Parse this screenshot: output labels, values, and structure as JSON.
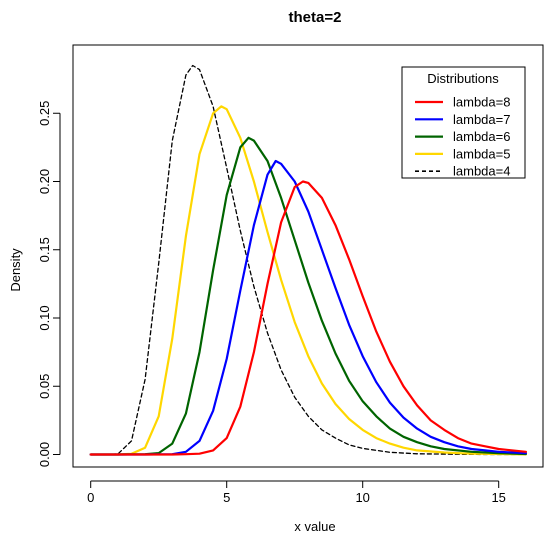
{
  "chart_data": {
    "type": "line",
    "title": "theta=2",
    "xlabel": "x value",
    "ylabel": "Density",
    "xlim": [
      0,
      16
    ],
    "ylim": [
      0,
      0.285
    ],
    "xticks": [
      0,
      5,
      10,
      15
    ],
    "yticks": [
      0.0,
      0.05,
      0.1,
      0.15,
      0.2,
      0.25
    ],
    "ytick_labels": [
      "0.00",
      "0.05",
      "0.10",
      "0.15",
      "0.20",
      "0.25"
    ],
    "grid": false,
    "legend": {
      "title": "Distributions",
      "placement": "top-right",
      "entries": [
        "lambda=8",
        "lambda=7",
        "lambda=6",
        "lambda=5",
        "lambda=4"
      ]
    },
    "series": [
      {
        "name": "lambda=8",
        "color": "#FF0000",
        "style": "solid",
        "points": [
          [
            0,
            0
          ],
          [
            1,
            0
          ],
          [
            2,
            0
          ],
          [
            3,
            0
          ],
          [
            3.5,
            0.0002
          ],
          [
            4,
            0.0006
          ],
          [
            4.5,
            0.003
          ],
          [
            5,
            0.012
          ],
          [
            5.5,
            0.035
          ],
          [
            6,
            0.075
          ],
          [
            6.5,
            0.125
          ],
          [
            7,
            0.17
          ],
          [
            7.5,
            0.196
          ],
          [
            7.8,
            0.2
          ],
          [
            8,
            0.199
          ],
          [
            8.5,
            0.188
          ],
          [
            9,
            0.168
          ],
          [
            9.5,
            0.143
          ],
          [
            10,
            0.116
          ],
          [
            10.5,
            0.09
          ],
          [
            11,
            0.068
          ],
          [
            11.5,
            0.05
          ],
          [
            12,
            0.036
          ],
          [
            12.5,
            0.025
          ],
          [
            13,
            0.018
          ],
          [
            13.5,
            0.012
          ],
          [
            14,
            0.008
          ],
          [
            14.5,
            0.006
          ],
          [
            15,
            0.004
          ],
          [
            16,
            0.002
          ]
        ]
      },
      {
        "name": "lambda=7",
        "color": "#0000FF",
        "style": "solid",
        "points": [
          [
            0,
            0
          ],
          [
            1,
            0
          ],
          [
            2,
            0
          ],
          [
            3,
            0.0002
          ],
          [
            3.5,
            0.002
          ],
          [
            4,
            0.01
          ],
          [
            4.5,
            0.032
          ],
          [
            5,
            0.07
          ],
          [
            5.5,
            0.12
          ],
          [
            6,
            0.168
          ],
          [
            6.5,
            0.205
          ],
          [
            6.8,
            0.215
          ],
          [
            7,
            0.213
          ],
          [
            7.5,
            0.2
          ],
          [
            8,
            0.178
          ],
          [
            8.5,
            0.15
          ],
          [
            9,
            0.122
          ],
          [
            9.5,
            0.095
          ],
          [
            10,
            0.072
          ],
          [
            10.5,
            0.053
          ],
          [
            11,
            0.038
          ],
          [
            11.5,
            0.027
          ],
          [
            12,
            0.019
          ],
          [
            12.5,
            0.013
          ],
          [
            13,
            0.009
          ],
          [
            13.5,
            0.006
          ],
          [
            14,
            0.004
          ],
          [
            14.5,
            0.003
          ],
          [
            15,
            0.002
          ],
          [
            16,
            0.001
          ]
        ]
      },
      {
        "name": "lambda=6",
        "color": "#006400",
        "style": "solid",
        "points": [
          [
            0,
            0
          ],
          [
            1,
            0
          ],
          [
            2,
            0.0002
          ],
          [
            2.5,
            0.001
          ],
          [
            3,
            0.008
          ],
          [
            3.5,
            0.03
          ],
          [
            4,
            0.075
          ],
          [
            4.5,
            0.135
          ],
          [
            5,
            0.19
          ],
          [
            5.5,
            0.225
          ],
          [
            5.8,
            0.232
          ],
          [
            6,
            0.23
          ],
          [
            6.5,
            0.215
          ],
          [
            7,
            0.188
          ],
          [
            7.5,
            0.157
          ],
          [
            8,
            0.126
          ],
          [
            8.5,
            0.098
          ],
          [
            9,
            0.074
          ],
          [
            9.5,
            0.054
          ],
          [
            10,
            0.039
          ],
          [
            10.5,
            0.028
          ],
          [
            11,
            0.019
          ],
          [
            11.5,
            0.013
          ],
          [
            12,
            0.009
          ],
          [
            12.5,
            0.006
          ],
          [
            13,
            0.004
          ],
          [
            14,
            0.002
          ],
          [
            15,
            0.001
          ],
          [
            16,
            0.0004
          ]
        ]
      },
      {
        "name": "lambda=5",
        "color": "#FFD700",
        "style": "solid",
        "points": [
          [
            0,
            0
          ],
          [
            1,
            0
          ],
          [
            1.5,
            0.0005
          ],
          [
            2,
            0.005
          ],
          [
            2.5,
            0.028
          ],
          [
            3,
            0.085
          ],
          [
            3.5,
            0.16
          ],
          [
            4,
            0.22
          ],
          [
            4.5,
            0.25
          ],
          [
            4.8,
            0.255
          ],
          [
            5,
            0.253
          ],
          [
            5.5,
            0.232
          ],
          [
            6,
            0.2
          ],
          [
            6.5,
            0.163
          ],
          [
            7,
            0.128
          ],
          [
            7.5,
            0.097
          ],
          [
            8,
            0.072
          ],
          [
            8.5,
            0.052
          ],
          [
            9,
            0.037
          ],
          [
            9.5,
            0.026
          ],
          [
            10,
            0.018
          ],
          [
            10.5,
            0.012
          ],
          [
            11,
            0.008
          ],
          [
            11.5,
            0.005
          ],
          [
            12,
            0.003
          ],
          [
            13,
            0.0015
          ],
          [
            14,
            0.0006
          ],
          [
            16,
            0.0001
          ]
        ]
      },
      {
        "name": "lambda=4",
        "color": "#000000",
        "style": "dashed",
        "points": [
          [
            0,
            0
          ],
          [
            0.5,
            0
          ],
          [
            1,
            0.0004
          ],
          [
            1.5,
            0.01
          ],
          [
            2,
            0.055
          ],
          [
            2.5,
            0.14
          ],
          [
            3,
            0.23
          ],
          [
            3.5,
            0.278
          ],
          [
            3.75,
            0.285
          ],
          [
            4,
            0.282
          ],
          [
            4.5,
            0.255
          ],
          [
            5,
            0.21
          ],
          [
            5.5,
            0.164
          ],
          [
            6,
            0.123
          ],
          [
            6.5,
            0.089
          ],
          [
            7,
            0.062
          ],
          [
            7.5,
            0.042
          ],
          [
            8,
            0.028
          ],
          [
            8.5,
            0.018
          ],
          [
            9,
            0.012
          ],
          [
            9.5,
            0.007
          ],
          [
            10,
            0.0045
          ],
          [
            11,
            0.0016
          ],
          [
            12,
            0.0005
          ],
          [
            14,
            0.0001
          ],
          [
            16,
            0
          ]
        ]
      }
    ]
  }
}
